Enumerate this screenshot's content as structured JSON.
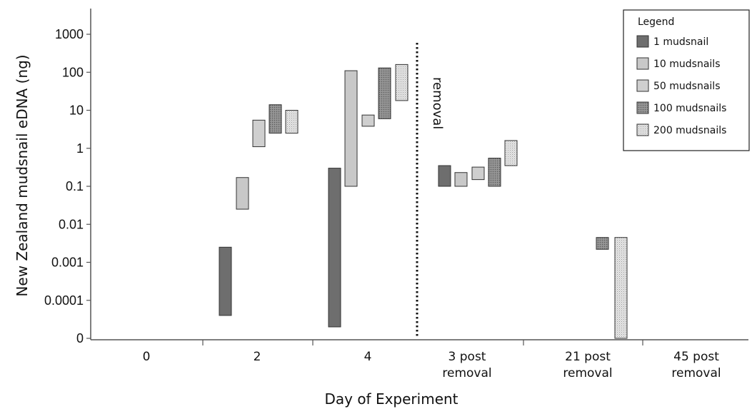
{
  "chart_data": {
    "type": "bar",
    "subtype": "floating range bars",
    "xlabel": "Day of Experiment",
    "ylabel": "New Zealand mudsnail eDNA (ng)",
    "y_scale": "log",
    "y_ticks": [
      "0",
      "0.0001",
      "0.001",
      "0.01",
      "0.1",
      "1",
      "10",
      "100",
      "1000"
    ],
    "categories": [
      [
        "0"
      ],
      [
        "2"
      ],
      [
        "4"
      ],
      [
        "3 post",
        "removal"
      ],
      [
        "21 post",
        "removal"
      ],
      [
        "45 post",
        "removal"
      ]
    ],
    "legend_title": "Legend",
    "legend_position": "top-right",
    "series": [
      {
        "name": "1 mudsnail",
        "color": "#6e6e6e",
        "pattern": "solid",
        "ranges": [
          null,
          [
            4e-05,
            0.0025
          ],
          [
            2e-05,
            0.3
          ],
          [
            0.1,
            0.35
          ],
          null,
          null
        ]
      },
      {
        "name": "10 mudsnails",
        "color": "#c8c8c8",
        "pattern": "solid",
        "ranges": [
          null,
          [
            0.025,
            0.17
          ],
          [
            0.1,
            110
          ],
          [
            0.1,
            0.23
          ],
          null,
          null
        ]
      },
      {
        "name": "50 mudsnails",
        "color": "#cfcfcf",
        "pattern": "solid",
        "ranges": [
          null,
          [
            1.1,
            5.5
          ],
          [
            3.8,
            7.5
          ],
          [
            0.15,
            0.32
          ],
          null,
          null
        ]
      },
      {
        "name": "100 mudsnails",
        "color": "#8c8c8c",
        "pattern": "dots-dense",
        "ranges": [
          null,
          [
            2.5,
            14
          ],
          [
            6,
            130
          ],
          [
            0.1,
            0.55
          ],
          [
            0.0022,
            0.0045
          ],
          null
        ]
      },
      {
        "name": "200 mudsnails",
        "color": "#dcdcdc",
        "pattern": "dots-light",
        "ranges": [
          null,
          [
            2.5,
            10
          ],
          [
            18,
            160
          ],
          [
            0.35,
            1.6
          ],
          [
            1e-06,
            0.0045
          ],
          null
        ]
      }
    ],
    "annotations": [
      {
        "text": "removal",
        "type": "vertical-dotted-line",
        "between": [
          "4",
          "3 post removal"
        ]
      }
    ],
    "grid": false
  }
}
